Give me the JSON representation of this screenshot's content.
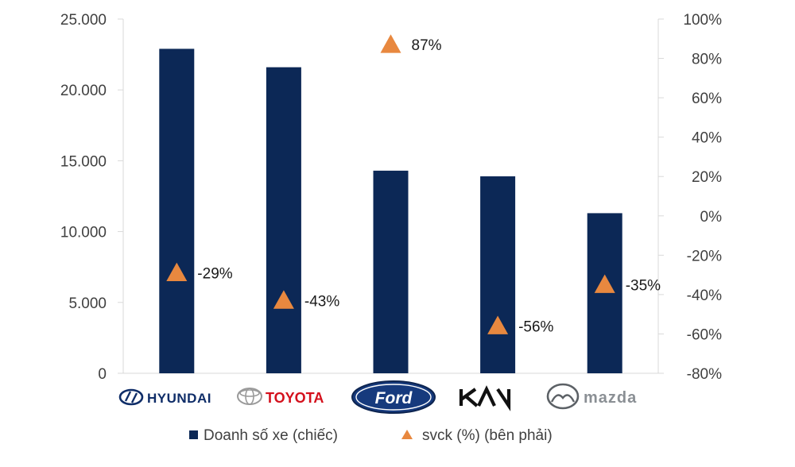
{
  "colors": {
    "bar": "#0c2856",
    "triangle": "#e8883f",
    "axis_text": "#404040",
    "grid": "#d9d9d9",
    "hyundai": "#0f2d68",
    "toyota": "#d4101c",
    "ford_blue": "#163a7d",
    "kia": "#111111",
    "mazda_grey": "#8a8f94"
  },
  "chart_data": {
    "type": "bar",
    "categories": [
      "HYUNDAI",
      "TOYOTA",
      "Ford",
      "KIA",
      "mazda"
    ],
    "series": [
      {
        "name": "Doanh số xe (chiếc)",
        "type": "bar",
        "axis": "left",
        "values": [
          22900,
          21600,
          14300,
          13900,
          11300
        ]
      },
      {
        "name": "svck (%) (bên phải)",
        "type": "scatter",
        "marker": "triangle",
        "axis": "right",
        "values": [
          -29,
          -43,
          87,
          -56,
          -35
        ],
        "labels": [
          "-29%",
          "-43%",
          "87%",
          "-56%",
          "-35%"
        ]
      }
    ],
    "y_left": {
      "lim": [
        0,
        25000
      ],
      "ticks": [
        0,
        5000,
        10000,
        15000,
        20000,
        25000
      ],
      "tick_labels": [
        "0",
        "5.000",
        "10.000",
        "15.000",
        "20.000",
        "25.000"
      ]
    },
    "y_right": {
      "lim": [
        -80,
        100
      ],
      "ticks": [
        -80,
        -60,
        -40,
        -20,
        0,
        20,
        40,
        60,
        80,
        100
      ],
      "tick_labels": [
        "-80%",
        "-60%",
        "-40%",
        "-20%",
        "0%",
        "20%",
        "40%",
        "60%",
        "80%",
        "100%"
      ]
    },
    "grid": false,
    "legend_position": "bottom"
  },
  "logos": {
    "hyundai": "HYUNDAI",
    "toyota": "TOYOTA",
    "ford": "Ford",
    "kia": "KIA",
    "mazda": "mazda"
  }
}
